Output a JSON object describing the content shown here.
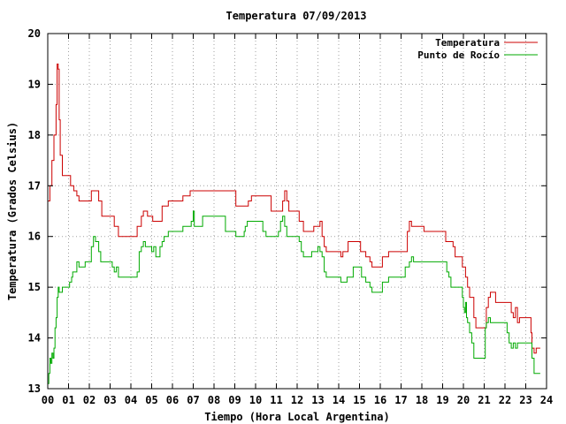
{
  "chart_data": {
    "type": "line",
    "title": "Temperatura 07/09/2013",
    "xlabel": "Tiempo (Hora Local Argentina)",
    "ylabel": "Temperatura (Grados Celsius)",
    "xlim": [
      0,
      24
    ],
    "ylim": [
      13,
      20
    ],
    "xticks": [
      "00",
      "01",
      "02",
      "03",
      "04",
      "05",
      "06",
      "07",
      "08",
      "09",
      "10",
      "11",
      "12",
      "13",
      "14",
      "15",
      "16",
      "17",
      "18",
      "19",
      "20",
      "21",
      "22",
      "23",
      "24"
    ],
    "yticks": [
      "13",
      "14",
      "15",
      "16",
      "17",
      "18",
      "19",
      "20"
    ],
    "grid": true,
    "legend_position": "top-right",
    "series": [
      {
        "name": "Temperatura",
        "color": "#cc0000",
        "points": [
          [
            0.0,
            16.7
          ],
          [
            0.1,
            17.0
          ],
          [
            0.2,
            17.5
          ],
          [
            0.3,
            18.0
          ],
          [
            0.4,
            18.6
          ],
          [
            0.45,
            19.4
          ],
          [
            0.5,
            19.3
          ],
          [
            0.55,
            18.3
          ],
          [
            0.6,
            17.6
          ],
          [
            0.7,
            17.2
          ],
          [
            1.0,
            17.2
          ],
          [
            1.1,
            17.0
          ],
          [
            1.25,
            16.9
          ],
          [
            1.4,
            16.8
          ],
          [
            1.5,
            16.7
          ],
          [
            2.0,
            16.7
          ],
          [
            2.1,
            16.9
          ],
          [
            2.35,
            16.9
          ],
          [
            2.45,
            16.7
          ],
          [
            2.6,
            16.4
          ],
          [
            3.1,
            16.4
          ],
          [
            3.2,
            16.2
          ],
          [
            3.4,
            16.0
          ],
          [
            4.2,
            16.0
          ],
          [
            4.3,
            16.2
          ],
          [
            4.5,
            16.4
          ],
          [
            4.6,
            16.5
          ],
          [
            4.8,
            16.4
          ],
          [
            5.0,
            16.4
          ],
          [
            5.05,
            16.3
          ],
          [
            5.4,
            16.3
          ],
          [
            5.5,
            16.6
          ],
          [
            5.7,
            16.6
          ],
          [
            5.8,
            16.7
          ],
          [
            6.4,
            16.7
          ],
          [
            6.5,
            16.8
          ],
          [
            6.8,
            16.8
          ],
          [
            6.85,
            16.9
          ],
          [
            9.0,
            16.9
          ],
          [
            9.05,
            16.6
          ],
          [
            9.6,
            16.6
          ],
          [
            9.65,
            16.7
          ],
          [
            9.8,
            16.8
          ],
          [
            10.7,
            16.8
          ],
          [
            10.75,
            16.5
          ],
          [
            11.2,
            16.5
          ],
          [
            11.3,
            16.7
          ],
          [
            11.4,
            16.9
          ],
          [
            11.5,
            16.7
          ],
          [
            11.6,
            16.5
          ],
          [
            12.0,
            16.5
          ],
          [
            12.1,
            16.3
          ],
          [
            12.3,
            16.1
          ],
          [
            12.7,
            16.1
          ],
          [
            12.8,
            16.2
          ],
          [
            13.0,
            16.2
          ],
          [
            13.1,
            16.3
          ],
          [
            13.2,
            16.0
          ],
          [
            13.3,
            15.8
          ],
          [
            13.4,
            15.7
          ],
          [
            14.0,
            15.7
          ],
          [
            14.1,
            15.6
          ],
          [
            14.2,
            15.7
          ],
          [
            14.4,
            15.7
          ],
          [
            14.45,
            15.9
          ],
          [
            15.0,
            15.9
          ],
          [
            15.05,
            15.7
          ],
          [
            15.3,
            15.6
          ],
          [
            15.5,
            15.5
          ],
          [
            15.6,
            15.4
          ],
          [
            16.0,
            15.4
          ],
          [
            16.1,
            15.6
          ],
          [
            16.3,
            15.6
          ],
          [
            16.4,
            15.7
          ],
          [
            17.2,
            15.7
          ],
          [
            17.3,
            16.1
          ],
          [
            17.4,
            16.3
          ],
          [
            17.5,
            16.2
          ],
          [
            18.0,
            16.2
          ],
          [
            18.1,
            16.1
          ],
          [
            19.1,
            16.1
          ],
          [
            19.15,
            15.9
          ],
          [
            19.5,
            15.8
          ],
          [
            19.6,
            15.6
          ],
          [
            19.9,
            15.6
          ],
          [
            19.95,
            15.4
          ],
          [
            20.1,
            15.2
          ],
          [
            20.2,
            15.0
          ],
          [
            20.3,
            14.8
          ],
          [
            20.5,
            14.4
          ],
          [
            20.6,
            14.2
          ],
          [
            21.0,
            14.2
          ],
          [
            21.1,
            14.6
          ],
          [
            21.2,
            14.8
          ],
          [
            21.3,
            14.9
          ],
          [
            21.5,
            14.9
          ],
          [
            21.55,
            14.7
          ],
          [
            22.2,
            14.7
          ],
          [
            22.3,
            14.5
          ],
          [
            22.4,
            14.4
          ],
          [
            22.5,
            14.6
          ],
          [
            22.6,
            14.3
          ],
          [
            22.7,
            14.4
          ],
          [
            23.2,
            14.4
          ],
          [
            23.25,
            14.1
          ],
          [
            23.3,
            13.8
          ],
          [
            23.4,
            13.7
          ],
          [
            23.5,
            13.8
          ],
          [
            23.7,
            13.8
          ]
        ]
      },
      {
        "name": "Punto de Rocío",
        "color": "#00aa00",
        "points": [
          [
            0.0,
            13.1
          ],
          [
            0.05,
            13.3
          ],
          [
            0.1,
            13.6
          ],
          [
            0.15,
            13.5
          ],
          [
            0.2,
            13.7
          ],
          [
            0.25,
            13.6
          ],
          [
            0.3,
            13.8
          ],
          [
            0.35,
            14.2
          ],
          [
            0.4,
            14.4
          ],
          [
            0.45,
            14.8
          ],
          [
            0.5,
            15.0
          ],
          [
            0.55,
            14.9
          ],
          [
            0.65,
            14.9
          ],
          [
            0.7,
            15.0
          ],
          [
            1.0,
            15.0
          ],
          [
            1.05,
            15.1
          ],
          [
            1.15,
            15.2
          ],
          [
            1.2,
            15.3
          ],
          [
            1.3,
            15.3
          ],
          [
            1.4,
            15.5
          ],
          [
            1.5,
            15.4
          ],
          [
            1.6,
            15.4
          ],
          [
            1.8,
            15.5
          ],
          [
            2.0,
            15.5
          ],
          [
            2.1,
            15.8
          ],
          [
            2.2,
            16.0
          ],
          [
            2.3,
            15.9
          ],
          [
            2.45,
            15.7
          ],
          [
            2.55,
            15.5
          ],
          [
            3.0,
            15.5
          ],
          [
            3.1,
            15.4
          ],
          [
            3.2,
            15.3
          ],
          [
            3.3,
            15.4
          ],
          [
            3.4,
            15.2
          ],
          [
            4.2,
            15.2
          ],
          [
            4.3,
            15.3
          ],
          [
            4.4,
            15.7
          ],
          [
            4.5,
            15.8
          ],
          [
            4.6,
            15.9
          ],
          [
            4.7,
            15.8
          ],
          [
            4.9,
            15.8
          ],
          [
            5.0,
            15.7
          ],
          [
            5.1,
            15.8
          ],
          [
            5.2,
            15.6
          ],
          [
            5.3,
            15.6
          ],
          [
            5.4,
            15.8
          ],
          [
            5.5,
            15.9
          ],
          [
            5.6,
            16.0
          ],
          [
            5.7,
            16.0
          ],
          [
            5.8,
            16.1
          ],
          [
            6.4,
            16.1
          ],
          [
            6.5,
            16.2
          ],
          [
            6.8,
            16.2
          ],
          [
            6.9,
            16.3
          ],
          [
            7.0,
            16.5
          ],
          [
            7.05,
            16.2
          ],
          [
            7.4,
            16.2
          ],
          [
            7.45,
            16.4
          ],
          [
            8.5,
            16.4
          ],
          [
            8.55,
            16.1
          ],
          [
            9.0,
            16.1
          ],
          [
            9.05,
            16.0
          ],
          [
            9.4,
            16.0
          ],
          [
            9.45,
            16.1
          ],
          [
            9.5,
            16.2
          ],
          [
            9.6,
            16.3
          ],
          [
            10.3,
            16.3
          ],
          [
            10.35,
            16.1
          ],
          [
            10.5,
            16.0
          ],
          [
            11.0,
            16.0
          ],
          [
            11.1,
            16.1
          ],
          [
            11.2,
            16.3
          ],
          [
            11.3,
            16.4
          ],
          [
            11.4,
            16.2
          ],
          [
            11.5,
            16.0
          ],
          [
            12.0,
            16.0
          ],
          [
            12.1,
            15.9
          ],
          [
            12.2,
            15.7
          ],
          [
            12.3,
            15.6
          ],
          [
            12.6,
            15.6
          ],
          [
            12.7,
            15.7
          ],
          [
            12.9,
            15.7
          ],
          [
            13.0,
            15.8
          ],
          [
            13.1,
            15.7
          ],
          [
            13.2,
            15.6
          ],
          [
            13.3,
            15.3
          ],
          [
            13.4,
            15.2
          ],
          [
            14.0,
            15.2
          ],
          [
            14.1,
            15.1
          ],
          [
            14.3,
            15.1
          ],
          [
            14.4,
            15.2
          ],
          [
            14.6,
            15.2
          ],
          [
            14.7,
            15.4
          ],
          [
            15.0,
            15.4
          ],
          [
            15.1,
            15.2
          ],
          [
            15.3,
            15.1
          ],
          [
            15.5,
            15.0
          ],
          [
            15.6,
            14.9
          ],
          [
            16.0,
            14.9
          ],
          [
            16.1,
            15.1
          ],
          [
            16.3,
            15.1
          ],
          [
            16.4,
            15.2
          ],
          [
            17.1,
            15.2
          ],
          [
            17.2,
            15.4
          ],
          [
            17.4,
            15.5
          ],
          [
            17.5,
            15.6
          ],
          [
            17.6,
            15.5
          ],
          [
            19.1,
            15.5
          ],
          [
            19.2,
            15.3
          ],
          [
            19.3,
            15.2
          ],
          [
            19.4,
            15.0
          ],
          [
            19.9,
            15.0
          ],
          [
            19.95,
            14.8
          ],
          [
            20.0,
            14.6
          ],
          [
            20.05,
            14.5
          ],
          [
            20.1,
            14.7
          ],
          [
            20.15,
            14.4
          ],
          [
            20.2,
            14.3
          ],
          [
            20.3,
            14.1
          ],
          [
            20.4,
            13.9
          ],
          [
            20.5,
            13.6
          ],
          [
            21.0,
            13.6
          ],
          [
            21.05,
            14.2
          ],
          [
            21.1,
            14.3
          ],
          [
            21.2,
            14.4
          ],
          [
            21.3,
            14.3
          ],
          [
            21.5,
            14.3
          ],
          [
            21.55,
            14.3
          ],
          [
            22.0,
            14.3
          ],
          [
            22.1,
            14.1
          ],
          [
            22.2,
            13.9
          ],
          [
            22.3,
            13.8
          ],
          [
            22.4,
            13.9
          ],
          [
            22.5,
            13.8
          ],
          [
            22.6,
            13.9
          ],
          [
            23.2,
            13.9
          ],
          [
            23.3,
            13.6
          ],
          [
            23.4,
            13.3
          ],
          [
            23.7,
            13.3
          ]
        ]
      }
    ]
  }
}
